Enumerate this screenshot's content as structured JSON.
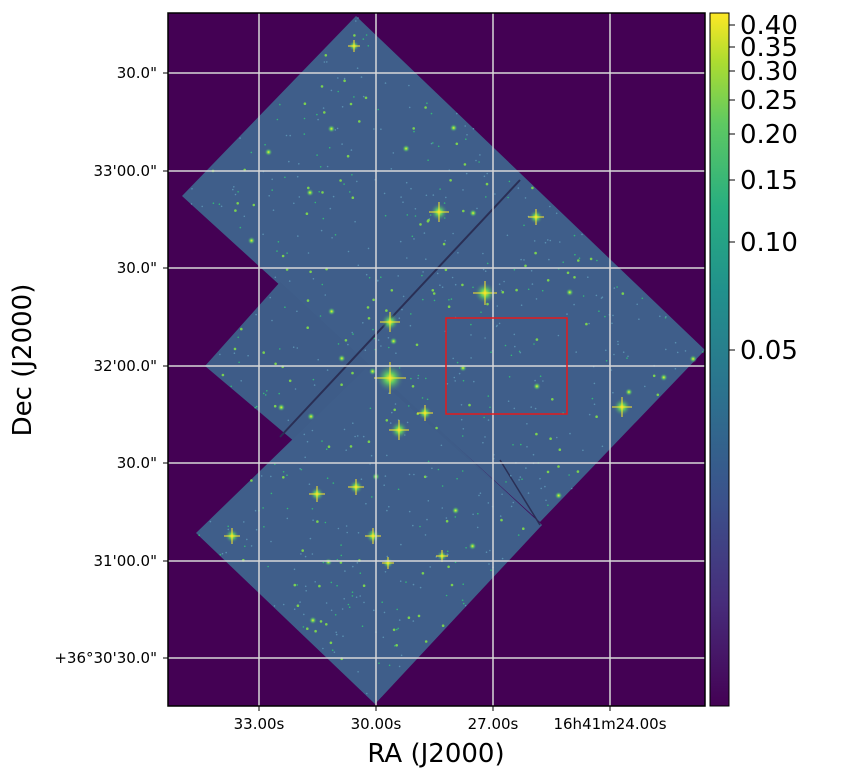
{
  "axes": {
    "xlabel": "RA (J2000)",
    "ylabel": "Dec (J2000)",
    "x_ticks": [
      "33.00s",
      "30.00s",
      "27.00s",
      "16h41m24.00s"
    ],
    "y_ticks": [
      "30.0\"",
      "33'00.0\"",
      "30.0\"",
      "32'00.0\"",
      "30.0\"",
      "31'00.0\"",
      "+36°30'30.0\""
    ]
  },
  "colorbar": {
    "colormap": "viridis",
    "scale": "nonlinear",
    "ticks": [
      "0.40",
      "0.35",
      "0.30",
      "0.25",
      "0.20",
      "0.15",
      "0.10",
      "0.05"
    ]
  },
  "grid": true,
  "colors": {
    "background": "#440154",
    "mosaic_fill": "#3f5e8a",
    "grid_line": "#d8d8d8",
    "region_box": "#e31a1c",
    "star_core": "#fde725",
    "star_halo": "#5ec962"
  },
  "overlays": [
    {
      "kind": "rectangle",
      "color": "red",
      "description_visible": false
    }
  ]
}
